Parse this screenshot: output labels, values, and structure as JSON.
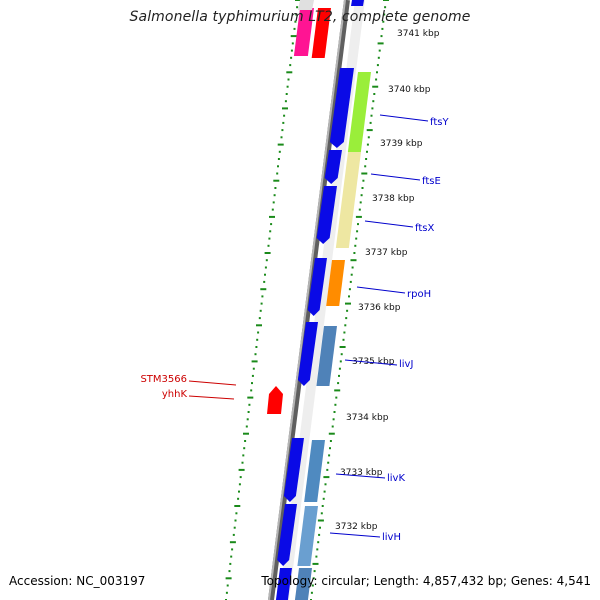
{
  "header": {
    "title": "Salmonella typhimurium LT2, complete genome"
  },
  "footer": {
    "accession_text": "Accession: NC_003197",
    "topology_text": "Topology: circular; Length: 4,857,432 bp; Genes: 4,541"
  },
  "colors": {
    "backbone": "#8c8c8c",
    "gc_dots": "#1a8a1a",
    "forward_gene": "#0a0ae6",
    "reverse_gene": "#ff0000",
    "label_blue": "#0000cc",
    "label_red": "#cc0000"
  },
  "scale_labels": [
    "3741 kbp",
    "3740 kbp",
    "3739 kbp",
    "3738 kbp",
    "3737 kbp",
    "3736 kbp",
    "3735 kbp",
    "3734 kbp",
    "3733 kbp",
    "3732 kbp"
  ],
  "gene_labels_right": [
    "ftsY",
    "ftsE",
    "ftsX",
    "rpoH",
    "livJ",
    "livK",
    "livH"
  ],
  "gene_labels_left": [
    "STM3566",
    "yhhK"
  ]
}
